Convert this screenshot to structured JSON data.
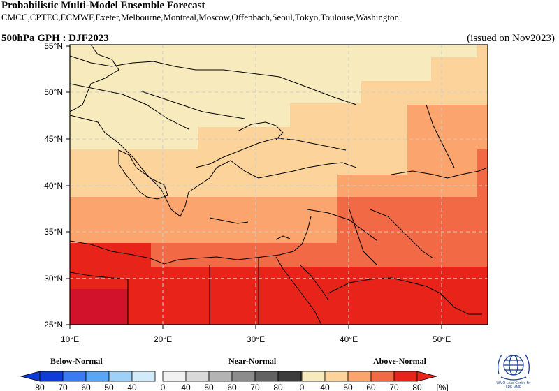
{
  "header": {
    "title": "Probabilistic Multi-Model Ensemble Forecast",
    "centres": "CMCC,CPTEC,ECMWF,Exeter,Melbourne,Montreal,Moscow,Offenbach,Seoul,Tokyo,Toulouse,Washington",
    "field": "500hPa GPH : DJF2023",
    "issued": "(issued on Nov2023)"
  },
  "map": {
    "lon_range": [
      10,
      55
    ],
    "lat_range": [
      25,
      55.5
    ],
    "x_ticks": [
      "10°E",
      "20°E",
      "30°E",
      "40°E",
      "50°E"
    ],
    "y_ticks": [
      "25°N",
      "30°N",
      "35°N",
      "40°N",
      "45°N",
      "50°N",
      "55°N"
    ],
    "category_colors": {
      "above_40_50": "#f7ebbe",
      "above_50_60": "#fcd49b",
      "above_60_70": "#fba46e",
      "above_70_80": "#f26a45",
      "above_80": "#e8231a",
      "above_80_dark": "#d1122a"
    },
    "forecast_blocks_desc": "Above-Normal probability increases southward across the Mediterranean domain."
  },
  "legend": {
    "below_label": "Below-Normal",
    "near_label": "Near-Normal",
    "above_label": "Above-Normal",
    "unit": "[%]",
    "below_ticks": [
      "80",
      "70",
      "60",
      "50",
      "40"
    ],
    "near_ticks": [
      "0",
      "40",
      "50",
      "60",
      "70",
      "80"
    ],
    "above_ticks": [
      "0",
      "40",
      "50",
      "60",
      "70",
      "80"
    ],
    "below_colors": [
      "#0f3bd8",
      "#3a7bf2",
      "#58a6f5",
      "#9ed0f8",
      "#d1ebfb"
    ],
    "near_colors": [
      "#f2f2f2",
      "#d9d9d9",
      "#b4b4b4",
      "#8c8c8c",
      "#626262",
      "#3c3c3c"
    ],
    "above_colors": [
      "#f7ebbe",
      "#fcd49b",
      "#fba46e",
      "#f26a45",
      "#e8231a"
    ]
  },
  "logo": {
    "line1": "WMO Lead Centre for",
    "line2": "LRF MME"
  }
}
